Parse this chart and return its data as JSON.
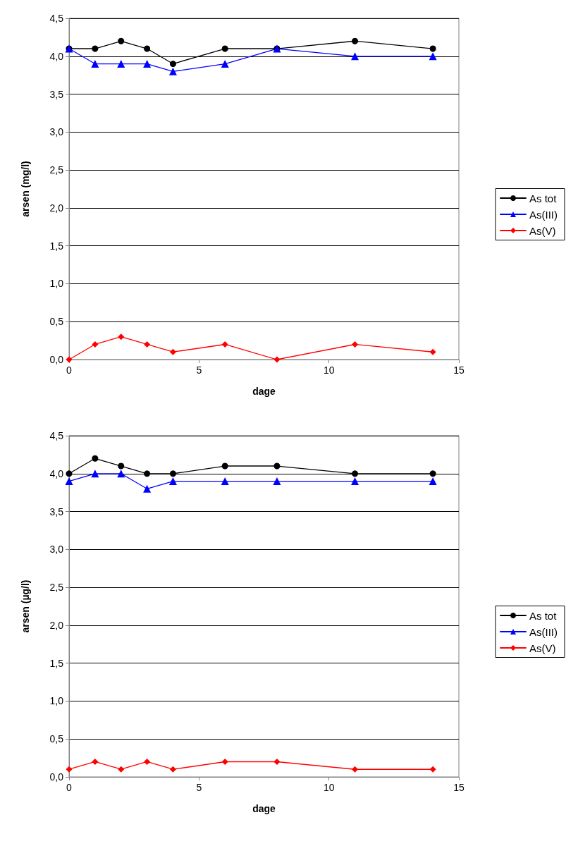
{
  "chart_data": [
    {
      "type": "line",
      "xlabel": "dage",
      "ylabel": "arsen (mg/l)",
      "x": [
        0,
        1,
        2,
        3,
        4,
        6,
        8,
        11,
        14
      ],
      "xlim": [
        0,
        15
      ],
      "xticks": [
        0,
        5,
        10,
        15
      ],
      "ylim": [
        0,
        4.5
      ],
      "yticks": [
        {
          "value": 0,
          "label": "0,0"
        },
        {
          "value": 0.5,
          "label": "0,5"
        },
        {
          "value": 1,
          "label": "1,0"
        },
        {
          "value": 1.5,
          "label": "1,5"
        },
        {
          "value": 2,
          "label": "2,0"
        },
        {
          "value": 2.5,
          "label": "2,5"
        },
        {
          "value": 3,
          "label": "3,0"
        },
        {
          "value": 3.5,
          "label": "3,5"
        },
        {
          "value": 4,
          "label": "4,0"
        },
        {
          "value": 4.5,
          "label": "4,5"
        }
      ],
      "grid": "y",
      "legend": "right",
      "line_style": "solid",
      "series": [
        {
          "name": "As tot",
          "color": "#000000",
          "marker": "circle",
          "values": [
            4.1,
            4.1,
            4.2,
            4.1,
            3.9,
            4.1,
            4.1,
            4.2,
            4.1
          ]
        },
        {
          "name": "As(III)",
          "color": "#0000ff",
          "marker": "triangle",
          "values": [
            4.1,
            3.9,
            3.9,
            3.9,
            3.8,
            3.9,
            4.1,
            4.0,
            4.0
          ]
        },
        {
          "name": "As(V)",
          "color": "#ff0000",
          "marker": "diamond",
          "values": [
            0,
            0.2,
            0.3,
            0.2,
            0.1,
            0.2,
            0,
            0.2,
            0.1
          ]
        }
      ]
    },
    {
      "type": "line",
      "xlabel": "dage",
      "ylabel": "arsen (µg/l)",
      "x": [
        0,
        1,
        2,
        3,
        4,
        6,
        8,
        11,
        14
      ],
      "xlim": [
        0,
        15
      ],
      "xticks": [
        0,
        5,
        10,
        15
      ],
      "ylim": [
        0,
        4.5
      ],
      "yticks": [
        {
          "value": 0,
          "label": "0,0"
        },
        {
          "value": 0.5,
          "label": "0,5"
        },
        {
          "value": 1,
          "label": "1,0"
        },
        {
          "value": 1.5,
          "label": "1,5"
        },
        {
          "value": 2,
          "label": "2,0"
        },
        {
          "value": 2.5,
          "label": "2,5"
        },
        {
          "value": 3,
          "label": "3,0"
        },
        {
          "value": 3.5,
          "label": "3,5"
        },
        {
          "value": 4,
          "label": "4,0"
        },
        {
          "value": 4.5,
          "label": "4,5"
        }
      ],
      "grid": "y",
      "legend": "right",
      "line_style": "solid",
      "series": [
        {
          "name": "As tot",
          "color": "#000000",
          "marker": "circle",
          "values": [
            4.0,
            4.2,
            4.1,
            4.0,
            4.0,
            4.1,
            4.1,
            4.0,
            4.0
          ]
        },
        {
          "name": "As(III)",
          "color": "#0000ff",
          "marker": "triangle",
          "values": [
            3.9,
            4.0,
            4.0,
            3.8,
            3.9,
            3.9,
            3.9,
            3.9,
            3.9
          ]
        },
        {
          "name": "As(V)",
          "color": "#ff0000",
          "marker": "diamond",
          "values": [
            0.1,
            0.2,
            0.1,
            0.2,
            0.1,
            0.2,
            0.2,
            0.1,
            0.1
          ]
        }
      ]
    }
  ]
}
